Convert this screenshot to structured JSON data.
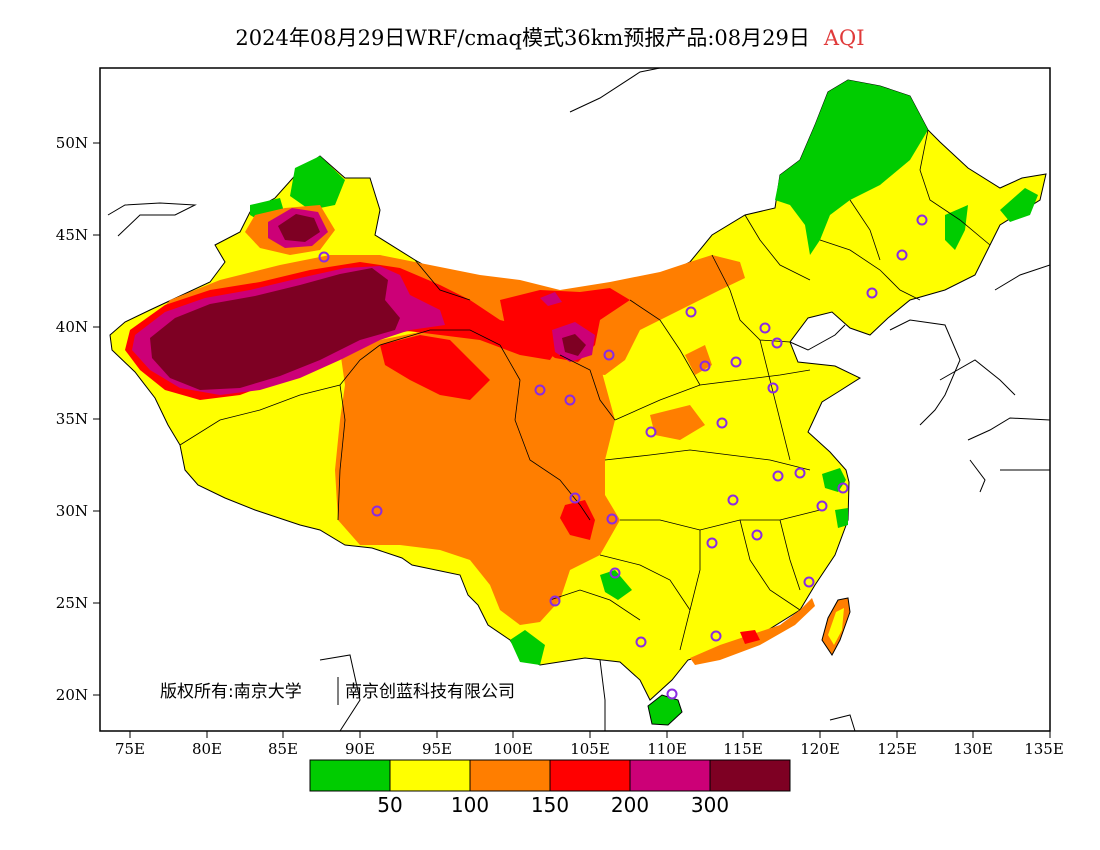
{
  "title": {
    "main": "2024年08月29日WRF/cmaq模式36km预报产品:08月29日",
    "variable": "AQI",
    "variable_color": "#e03a3a"
  },
  "axes": {
    "lat_labels": [
      "20N",
      "25N",
      "30N",
      "35N",
      "40N",
      "45N",
      "50N"
    ],
    "lon_labels": [
      "75E",
      "80E",
      "85E",
      "90E",
      "95E",
      "100E",
      "105E",
      "110E",
      "115E",
      "120E",
      "125E",
      "130E",
      "135E"
    ]
  },
  "copyright": {
    "part1": "版权所有:南京大学",
    "part2": "南京创蓝科技有限公司"
  },
  "legend": {
    "colors": [
      "#00cc00",
      "#ffff00",
      "#ff7e00",
      "#ff0000",
      "#cc0077",
      "#7e0023"
    ],
    "labels": [
      "50",
      "100",
      "150",
      "200",
      "300"
    ]
  },
  "colors": {
    "station_marker": "#8a2be2",
    "boundary": "#000000"
  }
}
